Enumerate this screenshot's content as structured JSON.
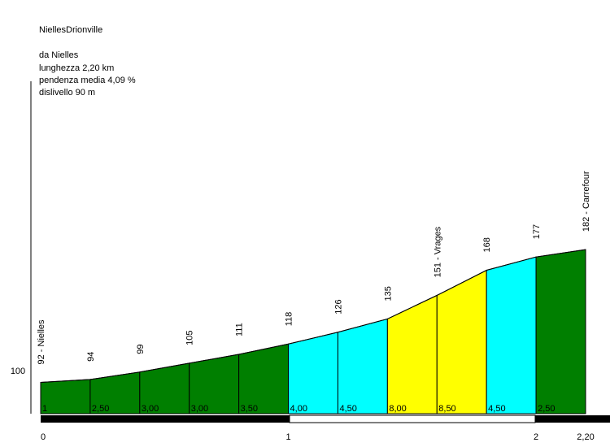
{
  "chart_data": {
    "type": "area",
    "title": "NiellesDrionville",
    "info": {
      "start": "da Nielles",
      "length": "lunghezza 2,20 km",
      "avg_gradient": "pendenza media 4,09 %",
      "elevation_gain": "dislivello 90 m"
    },
    "x_unit": "km",
    "y_unit": "m",
    "points": [
      {
        "x": 0.0,
        "y": 92,
        "label": "92 - Nielles"
      },
      {
        "x": 0.2,
        "y": 94,
        "label": "94"
      },
      {
        "x": 0.4,
        "y": 99,
        "label": "99"
      },
      {
        "x": 0.6,
        "y": 105,
        "label": "105"
      },
      {
        "x": 0.8,
        "y": 111,
        "label": "111"
      },
      {
        "x": 1.0,
        "y": 118,
        "label": "118"
      },
      {
        "x": 1.2,
        "y": 126,
        "label": "126"
      },
      {
        "x": 1.4,
        "y": 135,
        "label": "135"
      },
      {
        "x": 1.6,
        "y": 151,
        "label": "151 - Vrages"
      },
      {
        "x": 1.8,
        "y": 168,
        "label": "168"
      },
      {
        "x": 2.0,
        "y": 177,
        "label": "177"
      },
      {
        "x": 2.2,
        "y": 182,
        "label": "182 - Carrefour"
      }
    ],
    "segments": [
      {
        "from": 0.0,
        "to": 0.2,
        "gradient": "1",
        "color": "#007f00"
      },
      {
        "from": 0.2,
        "to": 0.4,
        "gradient": "2,50",
        "color": "#007f00"
      },
      {
        "from": 0.4,
        "to": 0.6,
        "gradient": "3,00",
        "color": "#007f00"
      },
      {
        "from": 0.6,
        "to": 0.8,
        "gradient": "3,00",
        "color": "#007f00"
      },
      {
        "from": 0.8,
        "to": 1.0,
        "gradient": "3,50",
        "color": "#007f00"
      },
      {
        "from": 1.0,
        "to": 1.2,
        "gradient": "4,00",
        "color": "#00ffff"
      },
      {
        "from": 1.2,
        "to": 1.4,
        "gradient": "4,50",
        "color": "#00ffff"
      },
      {
        "from": 1.4,
        "to": 1.6,
        "gradient": "8,00",
        "color": "#ffff00"
      },
      {
        "from": 1.6,
        "to": 1.8,
        "gradient": "8,50",
        "color": "#ffff00"
      },
      {
        "from": 1.8,
        "to": 2.0,
        "gradient": "4,50",
        "color": "#00ffff"
      },
      {
        "from": 2.0,
        "to": 2.2,
        "gradient": "2,50",
        "color": "#007f00"
      }
    ],
    "x_ticks": [
      {
        "value": 0,
        "label": "0"
      },
      {
        "value": 1,
        "label": "1"
      },
      {
        "value": 2,
        "label": "2"
      },
      {
        "value": 2.2,
        "label": "2,20"
      }
    ],
    "y_ticks": [
      {
        "value": 100,
        "label": "100"
      }
    ],
    "km_bar": {
      "dark": "#000000",
      "light": "#ffffff"
    }
  }
}
